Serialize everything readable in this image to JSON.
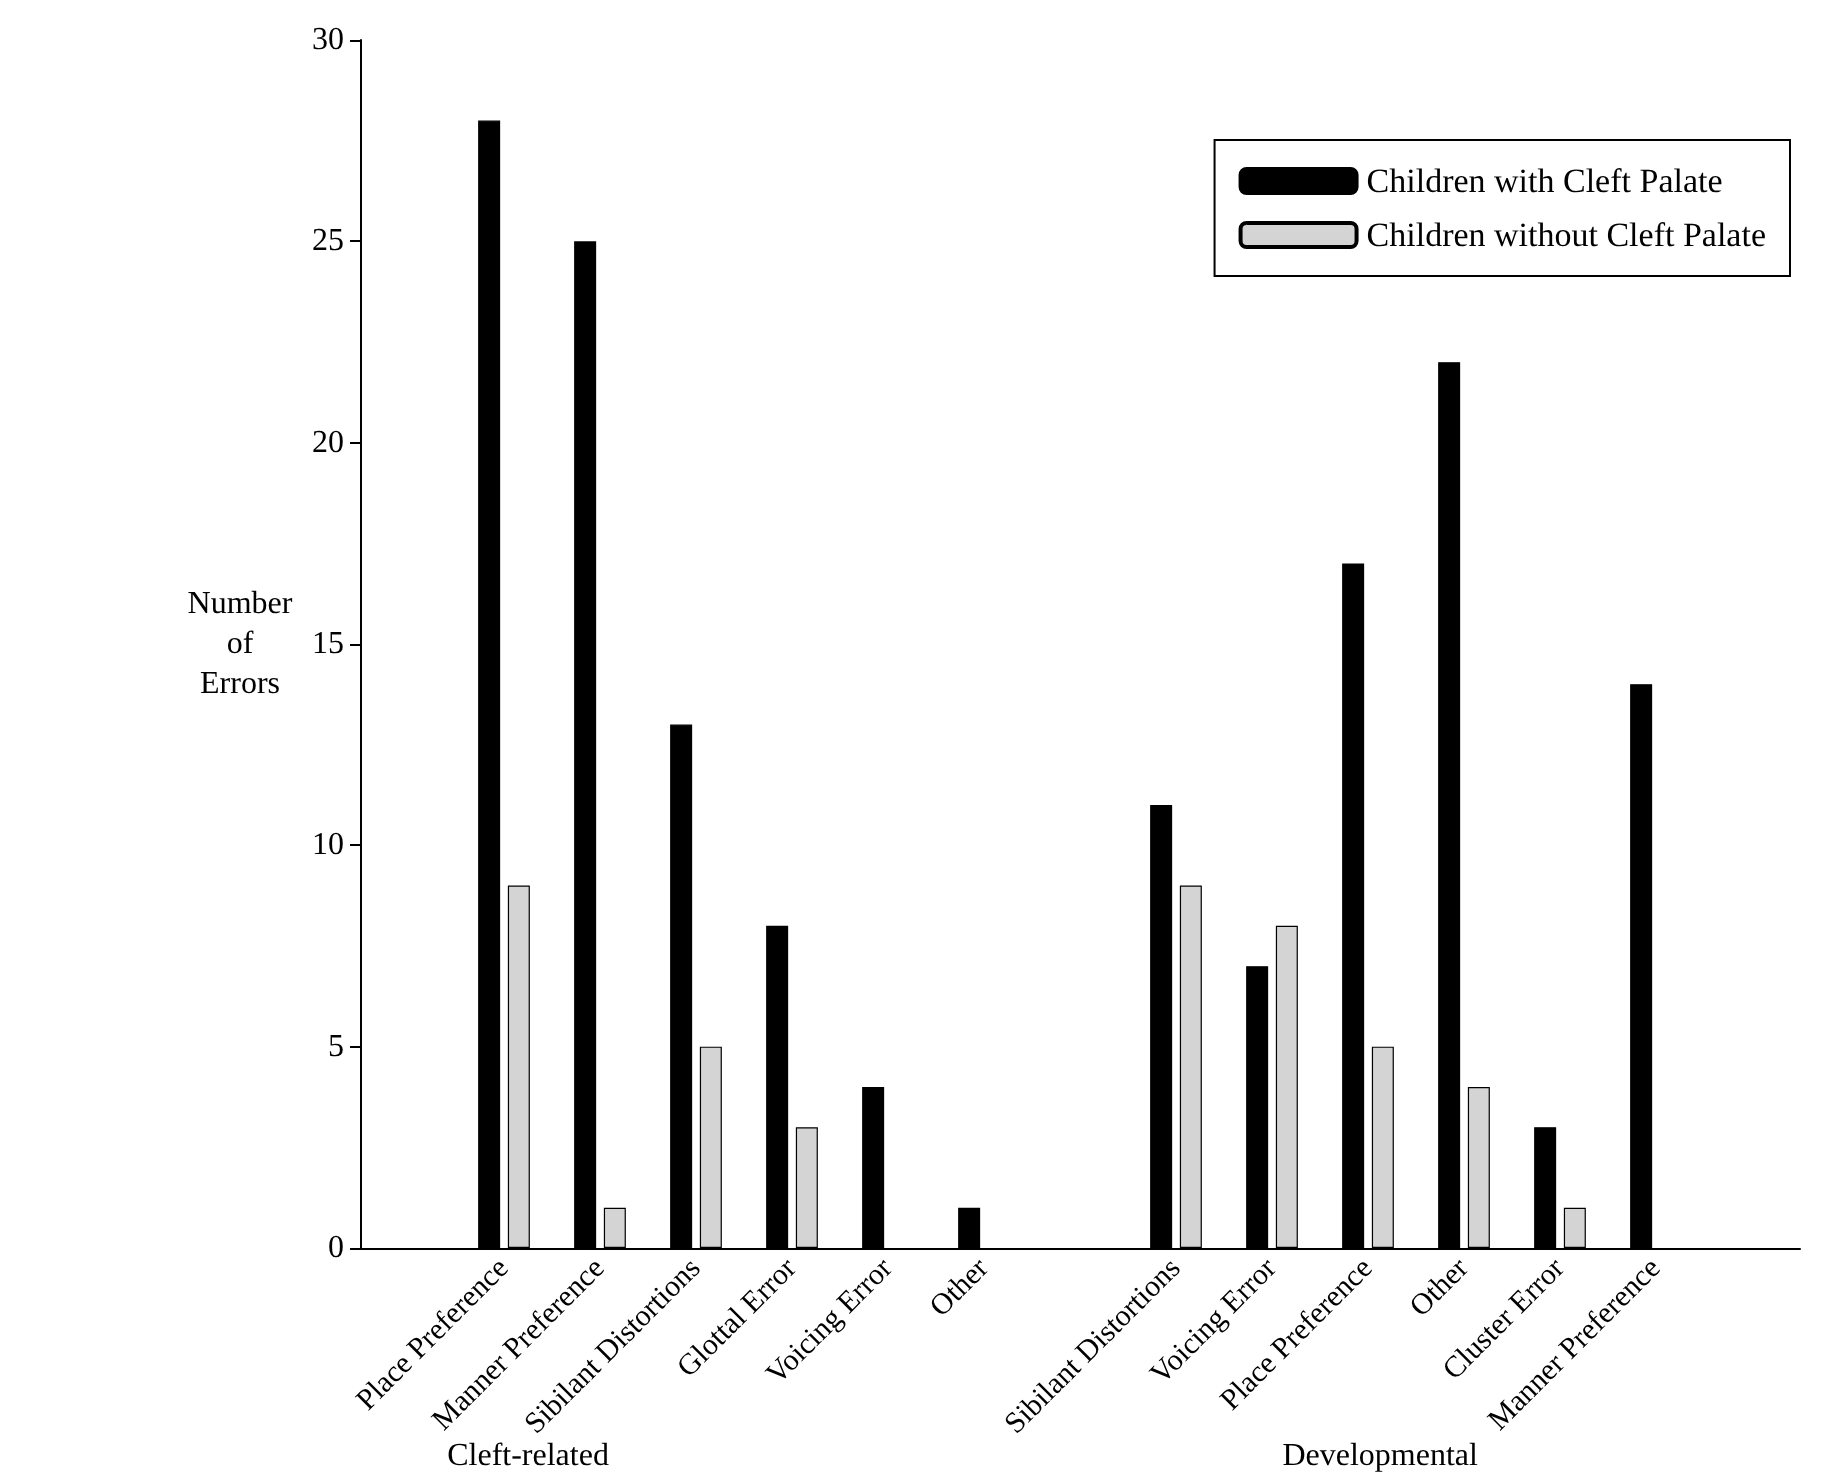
{
  "chart_data": {
    "type": "bar",
    "ylabel": "Number of Errors",
    "categories": [
      null,
      "Place Preference",
      "Manner Preference",
      "Sibilant Distortions",
      "Glottal Error",
      "Voicing Error",
      "Other",
      null,
      "Sibilant Distortions",
      "Voicing Error",
      "Place Preference",
      "Other",
      "Cluster Error",
      "Manner Preference",
      null
    ],
    "series": [
      {
        "name": "Children with Cleft Palate",
        "color": "#000000",
        "values": [
          null,
          28,
          25,
          13,
          8,
          4,
          1,
          null,
          11,
          7,
          17,
          22,
          3,
          14,
          null
        ]
      },
      {
        "name": "Children without Cleft Palate",
        "color": "#d4d4d4",
        "values": [
          null,
          9,
          1,
          5,
          3,
          0,
          0,
          null,
          9,
          8,
          5,
          4,
          1,
          0,
          null
        ]
      }
    ],
    "ylim": [
      0,
      30
    ],
    "yticks": [
      0,
      5,
      10,
      15,
      20,
      25,
      30
    ],
    "annotations": [
      "Cleft-related",
      "Developmental"
    ],
    "grid": false,
    "legend": "top right"
  }
}
